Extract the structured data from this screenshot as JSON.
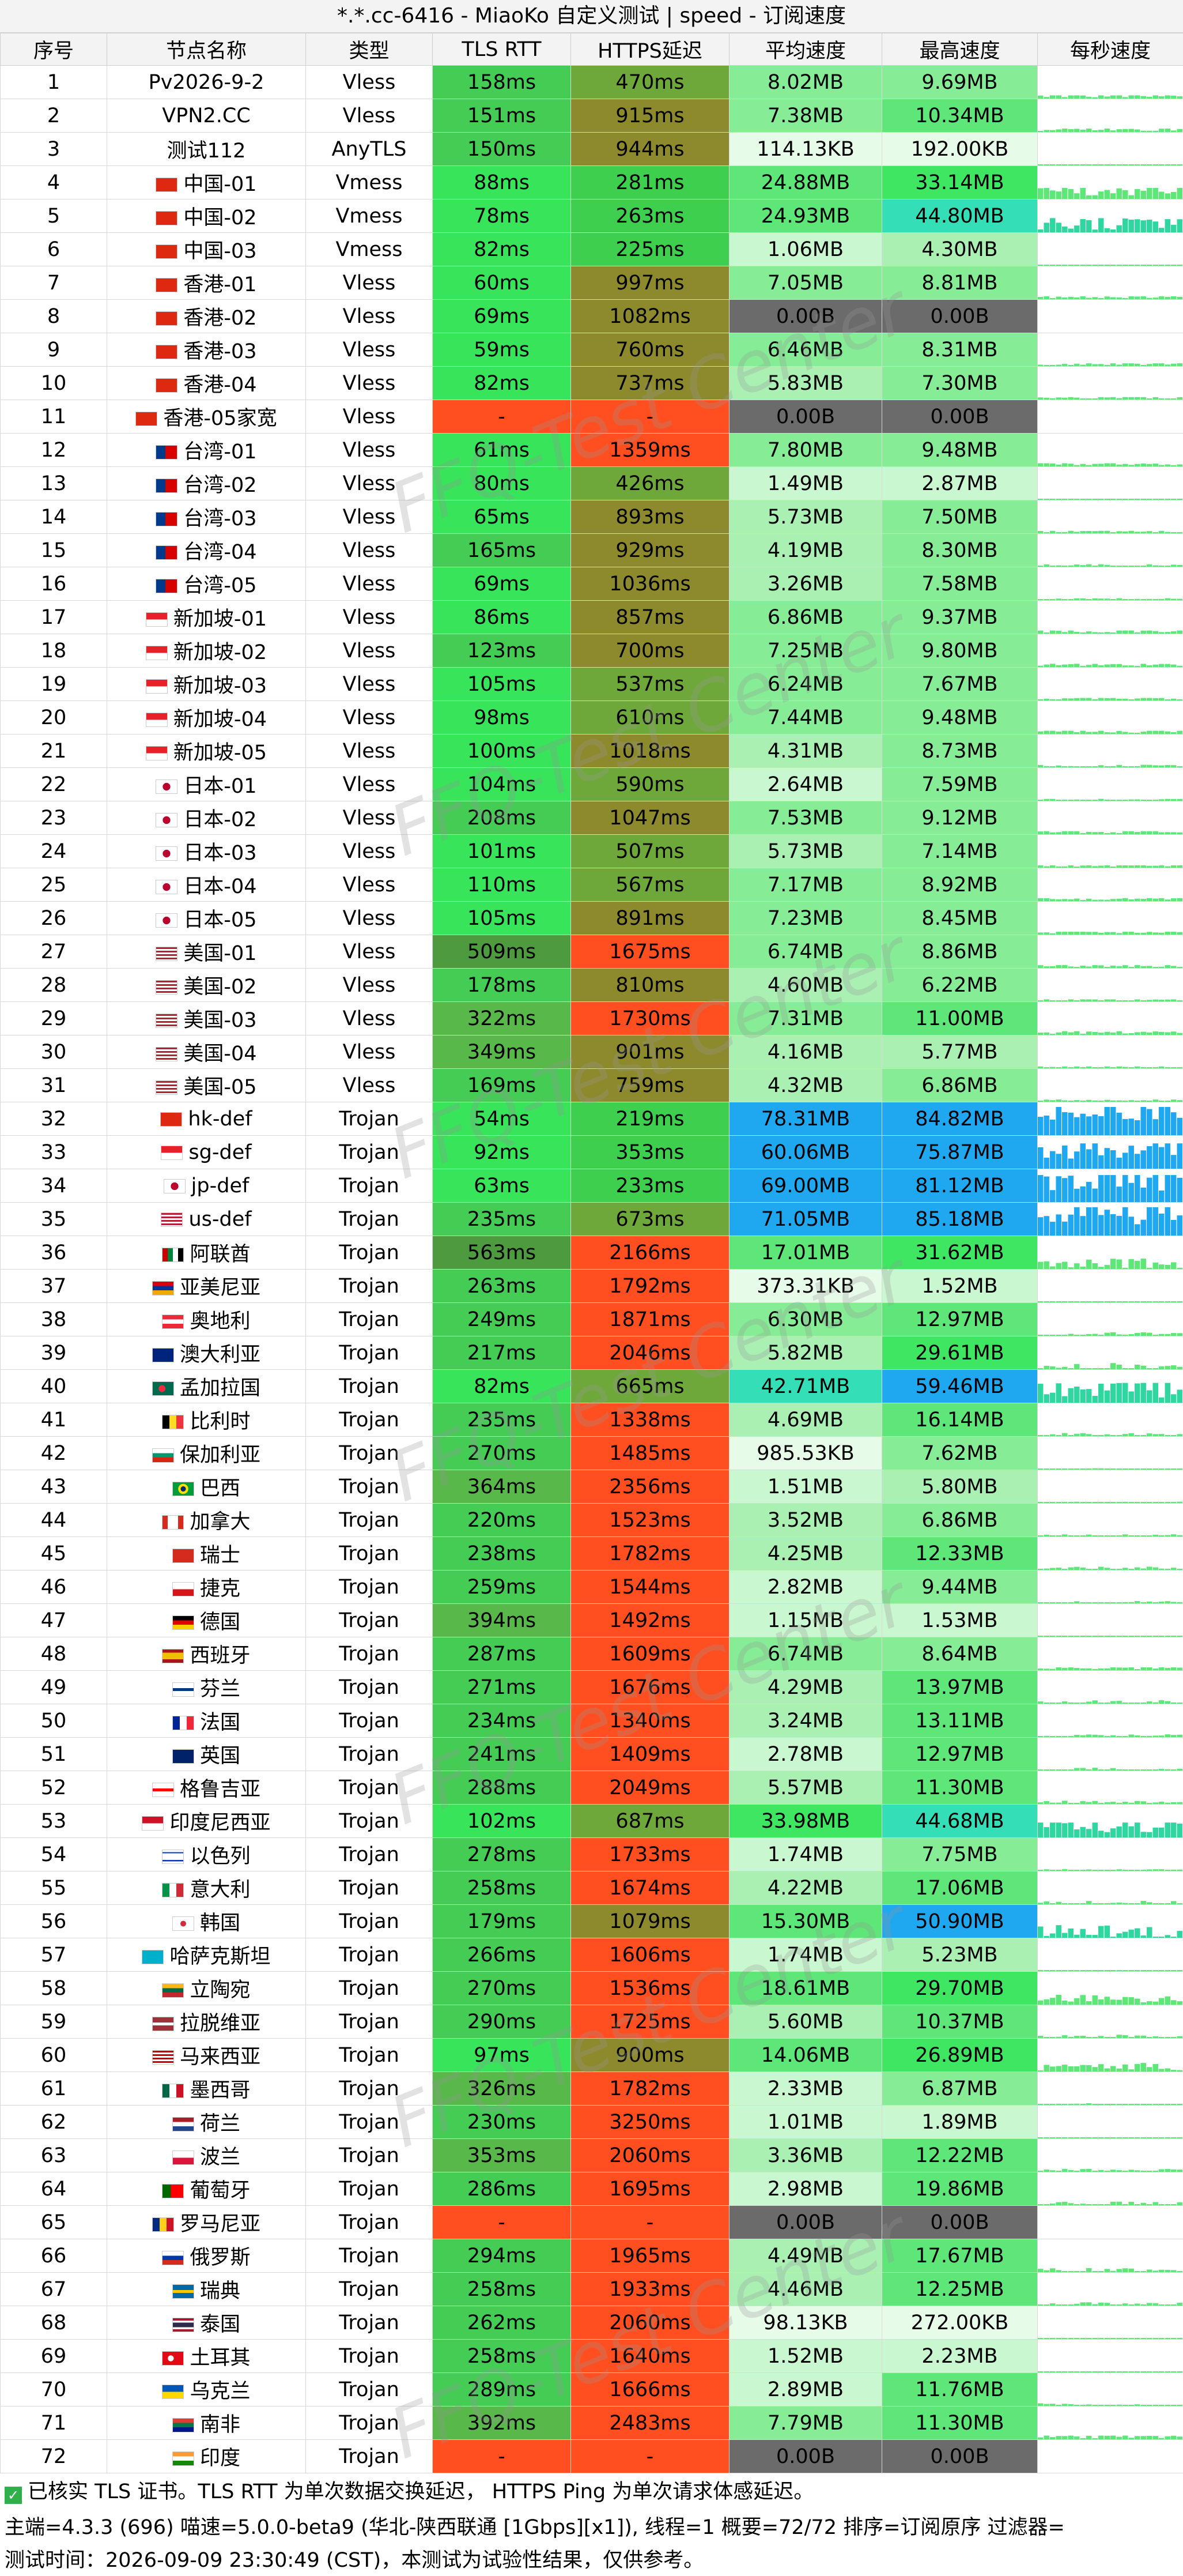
{
  "title": "*.*.cc-6416 - MiaoKo 自定义测试 | speed - 订阅速度",
  "headers": [
    "序号",
    "节点名称",
    "类型",
    "TLS RTT",
    "HTTPS延迟",
    "平均速度",
    "最高速度",
    "每秒速度"
  ],
  "watermark": "FFQ-Test Center",
  "rows": [
    [
      "1",
      "Pv2026-9-2",
      "Vless",
      "158ms",
      "470ms",
      "8.02MB",
      "9.69MB",
      "none"
    ],
    [
      "2",
      "VPN2.CC",
      "Vless",
      "151ms",
      "915ms",
      "7.38MB",
      "10.34MB",
      "none"
    ],
    [
      "3",
      "测试112",
      "AnyTLS",
      "150ms",
      "944ms",
      "114.13KB",
      "192.00KB",
      "none"
    ],
    [
      "4",
      "中国-01",
      "Vmess",
      "88ms",
      "281ms",
      "24.88MB",
      "33.14MB",
      "cn"
    ],
    [
      "5",
      "中国-02",
      "Vmess",
      "78ms",
      "263ms",
      "24.93MB",
      "44.80MB",
      "cn"
    ],
    [
      "6",
      "中国-03",
      "Vmess",
      "82ms",
      "225ms",
      "1.06MB",
      "4.30MB",
      "cn"
    ],
    [
      "7",
      "香港-01",
      "Vless",
      "60ms",
      "997ms",
      "7.05MB",
      "8.81MB",
      "hk"
    ],
    [
      "8",
      "香港-02",
      "Vless",
      "69ms",
      "1082ms",
      "0.00B",
      "0.00B",
      "hk"
    ],
    [
      "9",
      "香港-03",
      "Vless",
      "59ms",
      "760ms",
      "6.46MB",
      "8.31MB",
      "hk"
    ],
    [
      "10",
      "香港-04",
      "Vless",
      "82ms",
      "737ms",
      "5.83MB",
      "7.30MB",
      "hk"
    ],
    [
      "11",
      "香港-05家宽",
      "Vless",
      "-",
      "-",
      "0.00B",
      "0.00B",
      "hk"
    ],
    [
      "12",
      "台湾-01",
      "Vless",
      "61ms",
      "1359ms",
      "7.80MB",
      "9.48MB",
      "tw"
    ],
    [
      "13",
      "台湾-02",
      "Vless",
      "80ms",
      "426ms",
      "1.49MB",
      "2.87MB",
      "tw"
    ],
    [
      "14",
      "台湾-03",
      "Vless",
      "65ms",
      "893ms",
      "5.73MB",
      "7.50MB",
      "tw"
    ],
    [
      "15",
      "台湾-04",
      "Vless",
      "165ms",
      "929ms",
      "4.19MB",
      "8.30MB",
      "tw"
    ],
    [
      "16",
      "台湾-05",
      "Vless",
      "69ms",
      "1036ms",
      "3.26MB",
      "7.58MB",
      "tw"
    ],
    [
      "17",
      "新加坡-01",
      "Vless",
      "86ms",
      "857ms",
      "6.86MB",
      "9.37MB",
      "sg"
    ],
    [
      "18",
      "新加坡-02",
      "Vless",
      "123ms",
      "700ms",
      "7.25MB",
      "9.80MB",
      "sg"
    ],
    [
      "19",
      "新加坡-03",
      "Vless",
      "105ms",
      "537ms",
      "6.24MB",
      "7.67MB",
      "sg"
    ],
    [
      "20",
      "新加坡-04",
      "Vless",
      "98ms",
      "610ms",
      "7.44MB",
      "9.48MB",
      "sg"
    ],
    [
      "21",
      "新加坡-05",
      "Vless",
      "100ms",
      "1018ms",
      "4.31MB",
      "8.73MB",
      "sg"
    ],
    [
      "22",
      "日本-01",
      "Vless",
      "104ms",
      "590ms",
      "2.64MB",
      "7.59MB",
      "jp"
    ],
    [
      "23",
      "日本-02",
      "Vless",
      "208ms",
      "1047ms",
      "7.53MB",
      "9.12MB",
      "jp"
    ],
    [
      "24",
      "日本-03",
      "Vless",
      "101ms",
      "507ms",
      "5.73MB",
      "7.14MB",
      "jp"
    ],
    [
      "25",
      "日本-04",
      "Vless",
      "110ms",
      "567ms",
      "7.17MB",
      "8.92MB",
      "jp"
    ],
    [
      "26",
      "日本-05",
      "Vless",
      "105ms",
      "891ms",
      "7.23MB",
      "8.45MB",
      "jp"
    ],
    [
      "27",
      "美国-01",
      "Vless",
      "509ms",
      "1675ms",
      "6.74MB",
      "8.86MB",
      "us"
    ],
    [
      "28",
      "美国-02",
      "Vless",
      "178ms",
      "810ms",
      "4.60MB",
      "6.22MB",
      "us"
    ],
    [
      "29",
      "美国-03",
      "Vless",
      "322ms",
      "1730ms",
      "7.31MB",
      "11.00MB",
      "us"
    ],
    [
      "30",
      "美国-04",
      "Vless",
      "349ms",
      "901ms",
      "4.16MB",
      "5.77MB",
      "us"
    ],
    [
      "31",
      "美国-05",
      "Vless",
      "169ms",
      "759ms",
      "4.32MB",
      "6.86MB",
      "us"
    ],
    [
      "32",
      "hk-def",
      "Trojan",
      "54ms",
      "219ms",
      "78.31MB",
      "84.82MB",
      "hk"
    ],
    [
      "33",
      "sg-def",
      "Trojan",
      "92ms",
      "353ms",
      "60.06MB",
      "75.87MB",
      "sg"
    ],
    [
      "34",
      "jp-def",
      "Trojan",
      "63ms",
      "233ms",
      "69.00MB",
      "81.12MB",
      "jp"
    ],
    [
      "35",
      "us-def",
      "Trojan",
      "235ms",
      "673ms",
      "71.05MB",
      "85.18MB",
      "us"
    ],
    [
      "36",
      "阿联酋",
      "Trojan",
      "563ms",
      "2166ms",
      "17.01MB",
      "31.62MB",
      "ae"
    ],
    [
      "37",
      "亚美尼亚",
      "Trojan",
      "263ms",
      "1792ms",
      "373.31KB",
      "1.52MB",
      "am"
    ],
    [
      "38",
      "奥地利",
      "Trojan",
      "249ms",
      "1871ms",
      "6.30MB",
      "12.97MB",
      "at"
    ],
    [
      "39",
      "澳大利亚",
      "Trojan",
      "217ms",
      "2046ms",
      "5.82MB",
      "29.61MB",
      "au"
    ],
    [
      "40",
      "孟加拉国",
      "Trojan",
      "82ms",
      "665ms",
      "42.71MB",
      "59.46MB",
      "bd"
    ],
    [
      "41",
      "比利时",
      "Trojan",
      "235ms",
      "1338ms",
      "4.69MB",
      "16.14MB",
      "be"
    ],
    [
      "42",
      "保加利亚",
      "Trojan",
      "270ms",
      "1485ms",
      "985.53KB",
      "7.62MB",
      "bg"
    ],
    [
      "43",
      "巴西",
      "Trojan",
      "364ms",
      "2356ms",
      "1.51MB",
      "5.80MB",
      "br"
    ],
    [
      "44",
      "加拿大",
      "Trojan",
      "220ms",
      "1523ms",
      "3.52MB",
      "6.86MB",
      "ca"
    ],
    [
      "45",
      "瑞士",
      "Trojan",
      "238ms",
      "1782ms",
      "4.25MB",
      "12.33MB",
      "ch"
    ],
    [
      "46",
      "捷克",
      "Trojan",
      "259ms",
      "1544ms",
      "2.82MB",
      "9.44MB",
      "cz"
    ],
    [
      "47",
      "德国",
      "Trojan",
      "394ms",
      "1492ms",
      "1.15MB",
      "1.53MB",
      "de"
    ],
    [
      "48",
      "西班牙",
      "Trojan",
      "287ms",
      "1609ms",
      "6.74MB",
      "8.64MB",
      "es"
    ],
    [
      "49",
      "芬兰",
      "Trojan",
      "271ms",
      "1676ms",
      "4.29MB",
      "13.97MB",
      "fi"
    ],
    [
      "50",
      "法国",
      "Trojan",
      "234ms",
      "1340ms",
      "3.24MB",
      "13.11MB",
      "fr"
    ],
    [
      "51",
      "英国",
      "Trojan",
      "241ms",
      "1409ms",
      "2.78MB",
      "12.97MB",
      "gb"
    ],
    [
      "52",
      "格鲁吉亚",
      "Trojan",
      "288ms",
      "2049ms",
      "5.57MB",
      "11.30MB",
      "ge"
    ],
    [
      "53",
      "印度尼西亚",
      "Trojan",
      "102ms",
      "687ms",
      "33.98MB",
      "44.68MB",
      "id"
    ],
    [
      "54",
      "以色列",
      "Trojan",
      "278ms",
      "1733ms",
      "1.74MB",
      "7.75MB",
      "il"
    ],
    [
      "55",
      "意大利",
      "Trojan",
      "258ms",
      "1674ms",
      "4.22MB",
      "17.06MB",
      "it"
    ],
    [
      "56",
      "韩国",
      "Trojan",
      "179ms",
      "1079ms",
      "15.30MB",
      "50.90MB",
      "kr"
    ],
    [
      "57",
      "哈萨克斯坦",
      "Trojan",
      "266ms",
      "1606ms",
      "1.74MB",
      "5.23MB",
      "kz"
    ],
    [
      "58",
      "立陶宛",
      "Trojan",
      "270ms",
      "1536ms",
      "18.61MB",
      "29.70MB",
      "lt"
    ],
    [
      "59",
      "拉脱维亚",
      "Trojan",
      "290ms",
      "1725ms",
      "5.60MB",
      "10.37MB",
      "lv"
    ],
    [
      "60",
      "马来西亚",
      "Trojan",
      "97ms",
      "900ms",
      "14.06MB",
      "26.89MB",
      "my"
    ],
    [
      "61",
      "墨西哥",
      "Trojan",
      "326ms",
      "1782ms",
      "2.33MB",
      "6.87MB",
      "mx"
    ],
    [
      "62",
      "荷兰",
      "Trojan",
      "230ms",
      "3250ms",
      "1.01MB",
      "1.89MB",
      "nl"
    ],
    [
      "63",
      "波兰",
      "Trojan",
      "353ms",
      "2060ms",
      "3.36MB",
      "12.22MB",
      "pl"
    ],
    [
      "64",
      "葡萄牙",
      "Trojan",
      "286ms",
      "1695ms",
      "2.98MB",
      "19.86MB",
      "pt"
    ],
    [
      "65",
      "罗马尼亚",
      "Trojan",
      "-",
      "-",
      "0.00B",
      "0.00B",
      "ro"
    ],
    [
      "66",
      "俄罗斯",
      "Trojan",
      "294ms",
      "1965ms",
      "4.49MB",
      "17.67MB",
      "ru"
    ],
    [
      "67",
      "瑞典",
      "Trojan",
      "258ms",
      "1933ms",
      "4.46MB",
      "12.25MB",
      "se"
    ],
    [
      "68",
      "泰国",
      "Trojan",
      "262ms",
      "2060ms",
      "98.13KB",
      "272.00KB",
      "th"
    ],
    [
      "69",
      "土耳其",
      "Trojan",
      "258ms",
      "1640ms",
      "1.52MB",
      "2.23MB",
      "tr"
    ],
    [
      "70",
      "乌克兰",
      "Trojan",
      "289ms",
      "1666ms",
      "2.89MB",
      "11.76MB",
      "ua"
    ],
    [
      "71",
      "南非",
      "Trojan",
      "392ms",
      "2483ms",
      "7.79MB",
      "11.30MB",
      "za"
    ],
    [
      "72",
      "印度",
      "Trojan",
      "-",
      "-",
      "0.00B",
      "0.00B",
      "in"
    ]
  ],
  "footer": {
    "note": "已核实 TLS 证书。TLS RTT 为单次数据交换延迟， HTTPS Ping 为单次请求体感延迟。",
    "info": "主端=4.3.3 (696) 喵速=5.0.0-beta9 (华北-陕西联通 [1Gbps][x1]), 线程=1 概要=72/72 排序=订阅原序 过滤器=",
    "time": "测试时间：2026-09-09 23:30:49 (CST)，本测试为试验性结果，仅供参考。"
  }
}
